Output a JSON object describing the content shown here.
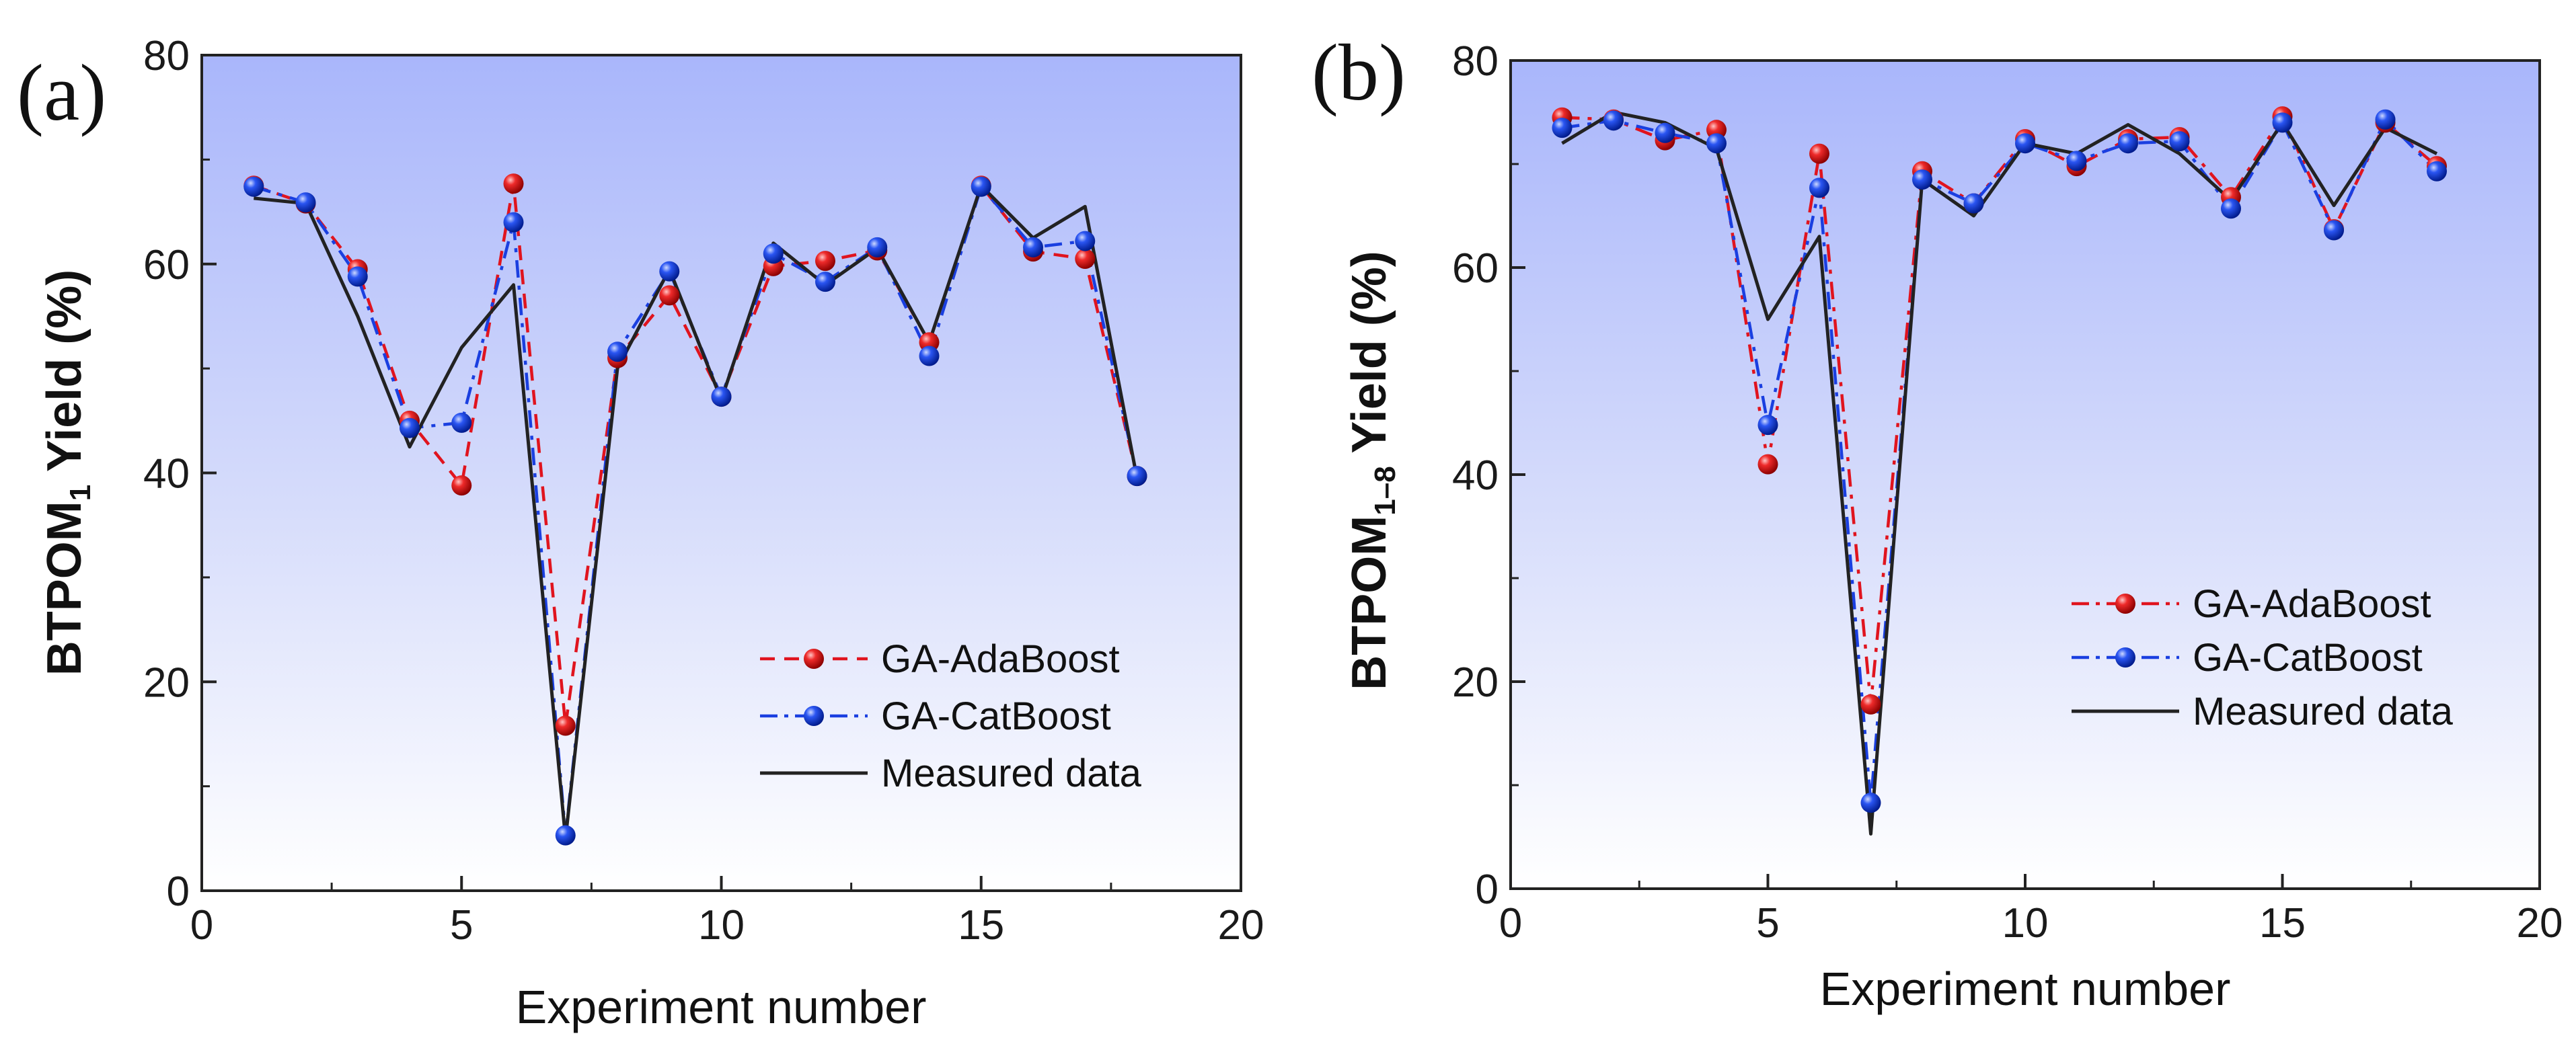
{
  "chart_data": [
    {
      "type": "line",
      "panel_label": "(a)",
      "xlabel": "Experiment number",
      "ylabel": {
        "prefix": "BTPOM",
        "subscript": "1",
        "suffix": " Yield (%)"
      },
      "xlim": [
        0,
        20
      ],
      "ylim": [
        0,
        80
      ],
      "xticks": [
        0,
        5,
        10,
        15,
        20
      ],
      "yticks": [
        0,
        20,
        40,
        60,
        80
      ],
      "legend_position": "lower-right",
      "series": [
        {
          "name": "GA-AdaBoost",
          "style": "dash-marker",
          "color": "#e0141e",
          "x": [
            1,
            2,
            3,
            4,
            5,
            6,
            7,
            8,
            9,
            10,
            11,
            12,
            13,
            14,
            15,
            16,
            17,
            18
          ],
          "y": [
            67.5,
            65.8,
            59.5,
            45.0,
            38.8,
            67.7,
            15.8,
            51.0,
            57.0,
            47.3,
            59.8,
            60.3,
            61.3,
            52.5,
            67.5,
            61.2,
            60.5,
            39.7
          ]
        },
        {
          "name": "GA-CatBoost",
          "style": "dashdot-marker",
          "color": "#1a3fe0",
          "x": [
            1,
            2,
            3,
            4,
            5,
            6,
            7,
            8,
            9,
            10,
            11,
            12,
            13,
            14,
            15,
            16,
            17,
            18
          ],
          "y": [
            67.4,
            65.9,
            58.8,
            44.3,
            44.8,
            64.0,
            5.3,
            51.6,
            59.3,
            47.3,
            61.0,
            58.3,
            61.6,
            51.2,
            67.4,
            61.6,
            62.2,
            39.7
          ]
        },
        {
          "name": "Measured data",
          "style": "solid",
          "color": "#222222",
          "x": [
            1,
            2,
            3,
            4,
            5,
            6,
            7,
            8,
            9,
            10,
            11,
            12,
            13,
            14,
            15,
            16,
            17,
            18
          ],
          "y": [
            66.3,
            65.8,
            55.0,
            42.5,
            52.0,
            58.0,
            5.0,
            50.0,
            59.5,
            47.0,
            62.0,
            58.0,
            61.5,
            52.5,
            67.5,
            62.5,
            65.5,
            39.5
          ]
        }
      ]
    },
    {
      "type": "line",
      "panel_label": "(b)",
      "xlabel": "Experiment number",
      "ylabel": {
        "prefix": "BTPOM",
        "subscript": "1–8",
        "suffix": " Yield (%)"
      },
      "xlim": [
        0,
        20
      ],
      "ylim": [
        0,
        80
      ],
      "xticks": [
        0,
        5,
        10,
        15,
        20
      ],
      "yticks": [
        0,
        20,
        40,
        60,
        80
      ],
      "legend_position": "lower-right",
      "series": [
        {
          "name": "GA-AdaBoost",
          "style": "dashdot-marker",
          "color": "#e0141e",
          "x": [
            1,
            2,
            3,
            4,
            5,
            6,
            7,
            8,
            9,
            10,
            11,
            12,
            13,
            14,
            15,
            16,
            17,
            18
          ],
          "y": [
            74.5,
            74.3,
            72.3,
            73.3,
            41.0,
            71.0,
            17.8,
            69.3,
            66.2,
            72.4,
            69.8,
            72.4,
            72.6,
            66.8,
            74.6,
            63.7,
            74.0,
            69.8
          ]
        },
        {
          "name": "GA-CatBoost",
          "style": "dashdot-marker",
          "color": "#1a3fe0",
          "x": [
            1,
            2,
            3,
            4,
            5,
            6,
            7,
            8,
            9,
            10,
            11,
            12,
            13,
            14,
            15,
            16,
            17,
            18
          ],
          "y": [
            73.5,
            74.2,
            73.0,
            72.0,
            44.8,
            67.7,
            8.3,
            68.5,
            66.2,
            72.0,
            70.3,
            72.0,
            72.2,
            65.7,
            74.0,
            63.6,
            74.3,
            69.3
          ]
        },
        {
          "name": "Measured data",
          "style": "solid",
          "color": "#222222",
          "x": [
            1,
            2,
            3,
            4,
            5,
            6,
            7,
            8,
            9,
            10,
            11,
            12,
            13,
            14,
            15,
            16,
            17,
            18
          ],
          "y": [
            72.0,
            75.0,
            74.0,
            71.5,
            55.0,
            63.0,
            5.3,
            68.5,
            65.0,
            72.0,
            71.0,
            73.8,
            71.0,
            66.5,
            74.0,
            66.0,
            73.5,
            71.0
          ]
        }
      ]
    }
  ]
}
